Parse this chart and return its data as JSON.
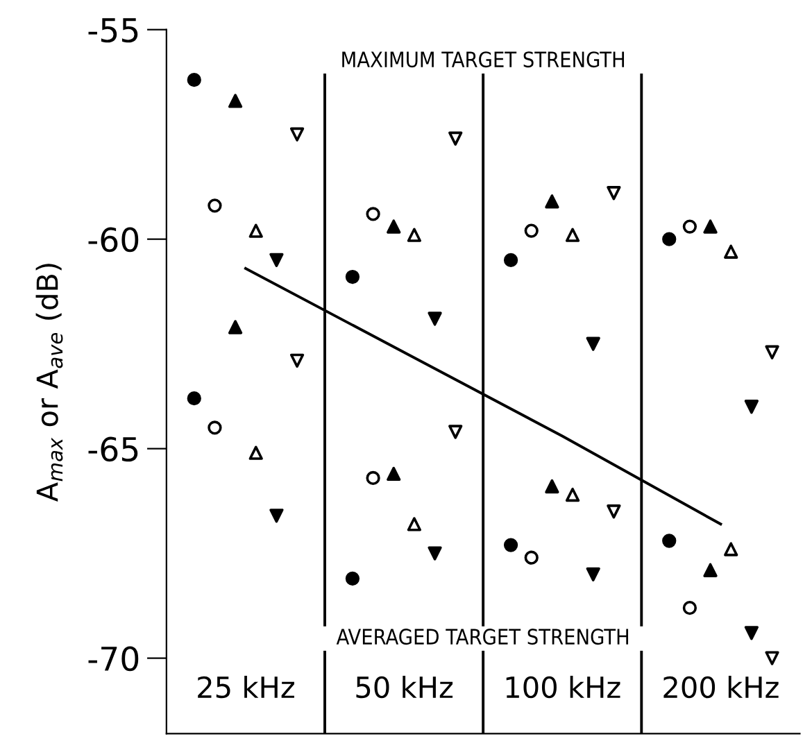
{
  "chart_data": {
    "type": "scatter",
    "ylabel": "A$_{max}$ or A$_{ave}$ (dB)",
    "categories": [
      "25 kHz",
      "50 kHz",
      "100 kHz",
      "200 kHz"
    ],
    "ylim": [
      -71.8,
      -55
    ],
    "yticks": [
      -55,
      -60,
      -65,
      -70
    ],
    "grid": false,
    "annotations": [
      "MAXIMUM TARGET STRENGTH",
      "AVERAGED TARGET STRENGTH"
    ],
    "series": [
      {
        "color": "#000000",
        "marker": "circle",
        "values": [
          -56.2,
          -60.9,
          -60.5,
          -60.0
        ]
      },
      {
        "color": "#000000",
        "marker": "circle-open",
        "values": [
          -59.2,
          -59.4,
          -59.8,
          -59.7
        ]
      },
      {
        "color": "#000000",
        "marker": "triangle",
        "values": [
          -56.7,
          -59.7,
          -59.1,
          -59.7
        ]
      },
      {
        "color": "#000000",
        "marker": "triangle-open",
        "values": [
          -59.8,
          -59.9,
          -59.9,
          -60.3
        ]
      },
      {
        "color": "#000000",
        "marker": "triangle-down",
        "values": [
          -60.5,
          -61.9,
          -62.5,
          -64.0
        ]
      },
      {
        "color": "#000000",
        "marker": "triangle-down-open",
        "values": [
          -57.5,
          -57.6,
          -58.9,
          -62.7
        ]
      },
      {
        "color": "#000000",
        "marker": "circle",
        "values": [
          -63.8,
          -68.1,
          -67.3,
          -67.2
        ]
      },
      {
        "color": "#000000",
        "marker": "circle-open",
        "values": [
          -64.5,
          -65.7,
          -67.6,
          -68.8
        ]
      },
      {
        "color": "#000000",
        "marker": "triangle",
        "values": [
          -62.1,
          -65.6,
          -65.9,
          -67.9
        ]
      },
      {
        "color": "#000000",
        "marker": "triangle-open",
        "values": [
          -65.1,
          -66.8,
          -66.1,
          -67.4
        ]
      },
      {
        "color": "#000000",
        "marker": "triangle-down",
        "values": [
          -66.6,
          -67.5,
          -68.0,
          -69.4
        ]
      },
      {
        "color": "#000000",
        "marker": "triangle-down-open",
        "values": [
          -62.9,
          -64.6,
          -66.5,
          -70.0
        ]
      },
      {
        "type": "line",
        "color": "#000000",
        "marker": "none",
        "line_style": "solid",
        "values": [
          -60.7,
          -62.7,
          -64.7,
          -66.8
        ]
      }
    ]
  }
}
